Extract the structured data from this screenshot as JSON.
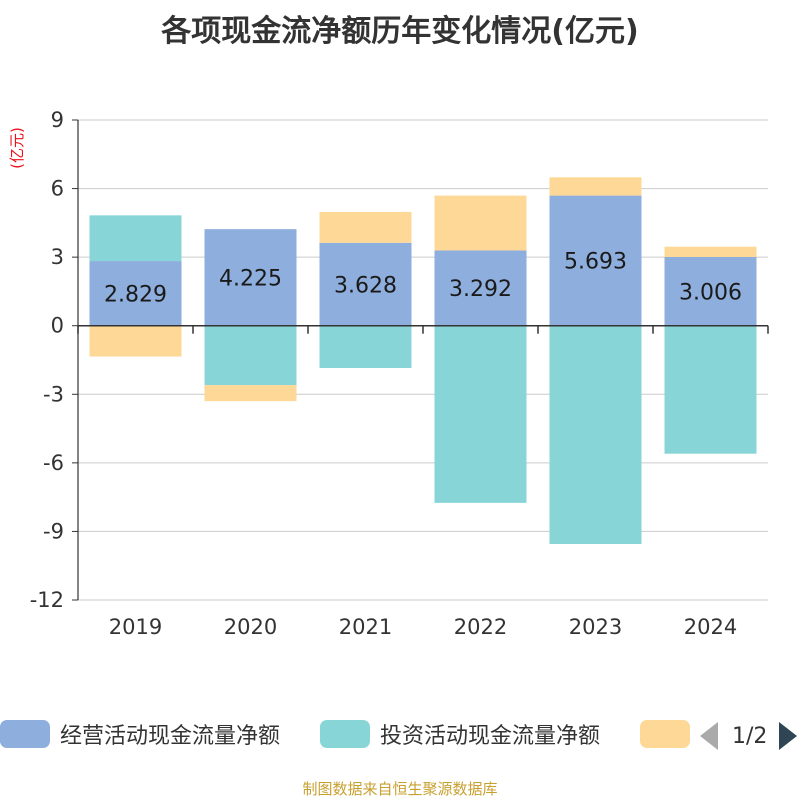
{
  "chart_data": {
    "type": "bar",
    "stacked": true,
    "title": "各项现金流净额历年变化情况(亿元)",
    "ylabel": "(亿元)",
    "xlabel": "",
    "categories": [
      "2019",
      "2020",
      "2021",
      "2022",
      "2023",
      "2024"
    ],
    "ylim": [
      -12,
      9
    ],
    "yticks": [
      9,
      6,
      3,
      0,
      -3,
      -6,
      -9,
      -12
    ],
    "ytick_labels": [
      "9",
      "6",
      "3",
      "0",
      "-3",
      "-6",
      "-9",
      "-12"
    ],
    "series": [
      {
        "name": "经营活动现金流量净额",
        "color": "#8eaedd",
        "values": [
          2.829,
          4.225,
          3.628,
          3.292,
          5.693,
          3.006
        ],
        "labels": [
          "2.829",
          "4.225",
          "3.628",
          "3.292",
          "5.693",
          "3.006"
        ]
      },
      {
        "name": "投资活动现金流量净额",
        "color": "#88d5d8",
        "values": [
          2.0,
          -2.6,
          -1.85,
          -7.75,
          -9.55,
          -5.6
        ]
      },
      {
        "name": "",
        "color": "#fdd896",
        "values": [
          -1.35,
          -0.7,
          1.35,
          2.4,
          0.8,
          0.45
        ]
      }
    ],
    "legend_position": "bottom"
  },
  "legend": {
    "items": [
      {
        "label": "经营活动现金流量净额",
        "color": "#8eaedd"
      },
      {
        "label": "投资活动现金流量净额",
        "color": "#88d5d8"
      },
      {
        "label": "",
        "color": "#fdd896"
      }
    ],
    "page_indicator": "1/2"
  },
  "source_note": "制图数据来自恒生聚源数据库"
}
